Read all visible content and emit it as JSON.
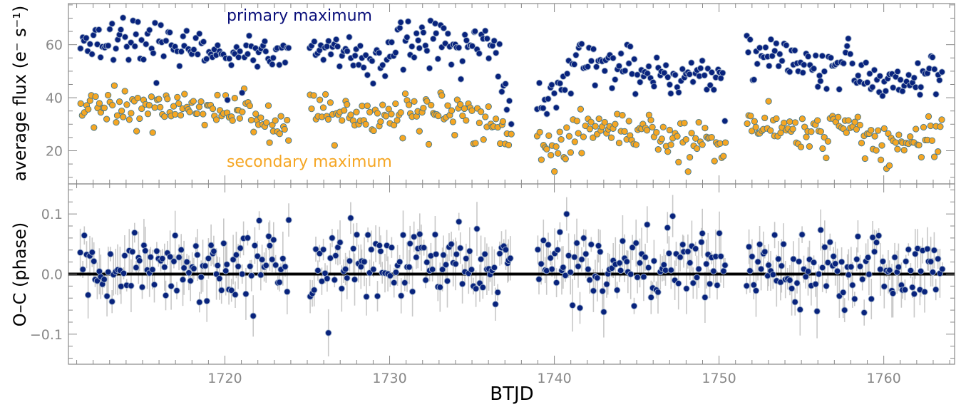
{
  "chart_data": [
    {
      "type": "scatter",
      "panel": "top",
      "ylabel": "average flux (e⁻ s⁻¹)",
      "xlim": [
        1710.5,
        1764.3
      ],
      "ylim": [
        7.5,
        75.5
      ],
      "yticks": [
        20,
        40,
        60
      ],
      "grid": false,
      "legend": "none",
      "annotations": [
        {
          "text": "primary maximum",
          "color": "#0a0f7a"
        },
        {
          "text": "secondary maximum",
          "color": "#f5a623"
        }
      ],
      "observing_segments": [
        [
          1711.2,
          1723.9
        ],
        [
          1725.1,
          1737.4
        ],
        [
          1738.9,
          1750.4
        ],
        [
          1751.6,
          1763.6
        ]
      ],
      "series": [
        {
          "name": "primary maximum",
          "color": "#08237d",
          "edge": "#9fb0c8",
          "trend": {
            "x": [
              1711.2,
              1714.0,
              1716.0,
              1718.0,
              1720.0,
              1722.0,
              1723.9,
              1725.1,
              1727.0,
              1729.0,
              1730.5,
              1732.0,
              1734.0,
              1736.0,
              1737.4,
              1738.9,
              1740.0,
              1741.5,
              1743.0,
              1745.0,
              1747.0,
              1749.0,
              1750.4,
              1751.6,
              1754.0,
              1756.0,
              1758.0,
              1760.0,
              1762.0,
              1763.6
            ],
            "y": [
              58,
              62,
              60,
              58,
              55,
              58,
              56,
              60,
              58,
              55,
              62,
              62,
              60,
              62,
              42,
              42,
              40,
              56,
              54,
              52,
              48,
              50,
              48,
              60,
              54,
              50,
              55,
              43,
              47,
              52
            ]
          },
          "spread": 6,
          "n_points": 430
        },
        {
          "name": "secondary maximum",
          "color": "#f5a623",
          "edge": "#46788c",
          "trend": {
            "x": [
              1711.2,
              1714.0,
              1716.0,
              1718.0,
              1720.0,
              1722.0,
              1723.9,
              1725.1,
              1727.0,
              1729.0,
              1730.5,
              1732.0,
              1734.0,
              1736.0,
              1737.4,
              1738.9,
              1740.0,
              1741.5,
              1743.0,
              1745.0,
              1747.0,
              1749.0,
              1750.4,
              1751.6,
              1754.0,
              1756.0,
              1758.0,
              1760.0,
              1762.0,
              1763.6
            ],
            "y": [
              36,
              38,
              36,
              37,
              35,
              34,
              33,
              35,
              34,
              30,
              36,
              37,
              35,
              32,
              26,
              24,
              20,
              30,
              28,
              28,
              25,
              25,
              24,
              30,
              28,
              27,
              30,
              22,
              24,
              28
            ]
          },
          "spread": 5,
          "n_points": 430
        }
      ]
    },
    {
      "type": "scatter",
      "panel": "bottom",
      "xlabel": "BTJD",
      "ylabel": "O–C (phase)",
      "xlim": [
        1710.5,
        1764.3
      ],
      "ylim": [
        -0.15,
        0.15
      ],
      "xticks": [
        1720,
        1730,
        1740,
        1750,
        1760
      ],
      "yticks": [
        -0.1,
        0.0,
        0.1
      ],
      "ytick_labels": [
        "−0.1",
        "0.0",
        "0.1"
      ],
      "grid": false,
      "legend": "none",
      "reference_line": {
        "y": 0.0,
        "color": "#000000"
      },
      "series": [
        {
          "name": "O–C",
          "color": "#08237d",
          "edge": "#9fb0c8",
          "errorbar_color": "#c8c8c8",
          "mean": 0.015,
          "spread": 0.03,
          "n_points": 430
        }
      ]
    }
  ]
}
